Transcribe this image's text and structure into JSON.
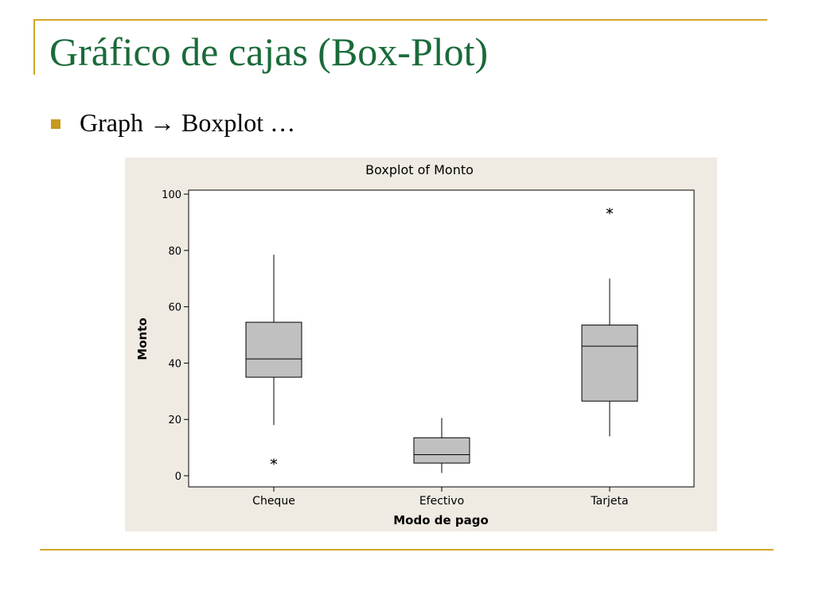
{
  "slide": {
    "title": "Gráfico de cajas (Box-Plot)",
    "bullet": "Graph → Boxplot …"
  },
  "colors": {
    "title": "#1a6b3a",
    "accent": "#d4a62a",
    "chart_background": "#efebe2",
    "box_fill": "#c0c0c0"
  },
  "chart_data": {
    "type": "boxplot",
    "title": "Boxplot of Monto",
    "xlabel": "Modo de pago",
    "ylabel": "Monto",
    "ylim": [
      -4,
      101.5
    ],
    "yticks": [
      0,
      20,
      40,
      60,
      80,
      100
    ],
    "categories": [
      "Cheque",
      "Efectivo",
      "Tarjeta"
    ],
    "boxes": [
      {
        "category": "Cheque",
        "min": 18,
        "q1": 35,
        "median": 41.5,
        "q3": 54.5,
        "max": 78.5,
        "outliers": [
          5
        ]
      },
      {
        "category": "Efectivo",
        "min": 1,
        "q1": 4.5,
        "median": 7.5,
        "q3": 13.5,
        "max": 20.5,
        "outliers": []
      },
      {
        "category": "Tarjeta",
        "min": 14,
        "q1": 26.5,
        "median": 46,
        "q3": 53.5,
        "max": 70,
        "outliers": [
          94
        ]
      }
    ],
    "grid": false,
    "legend": "none"
  }
}
